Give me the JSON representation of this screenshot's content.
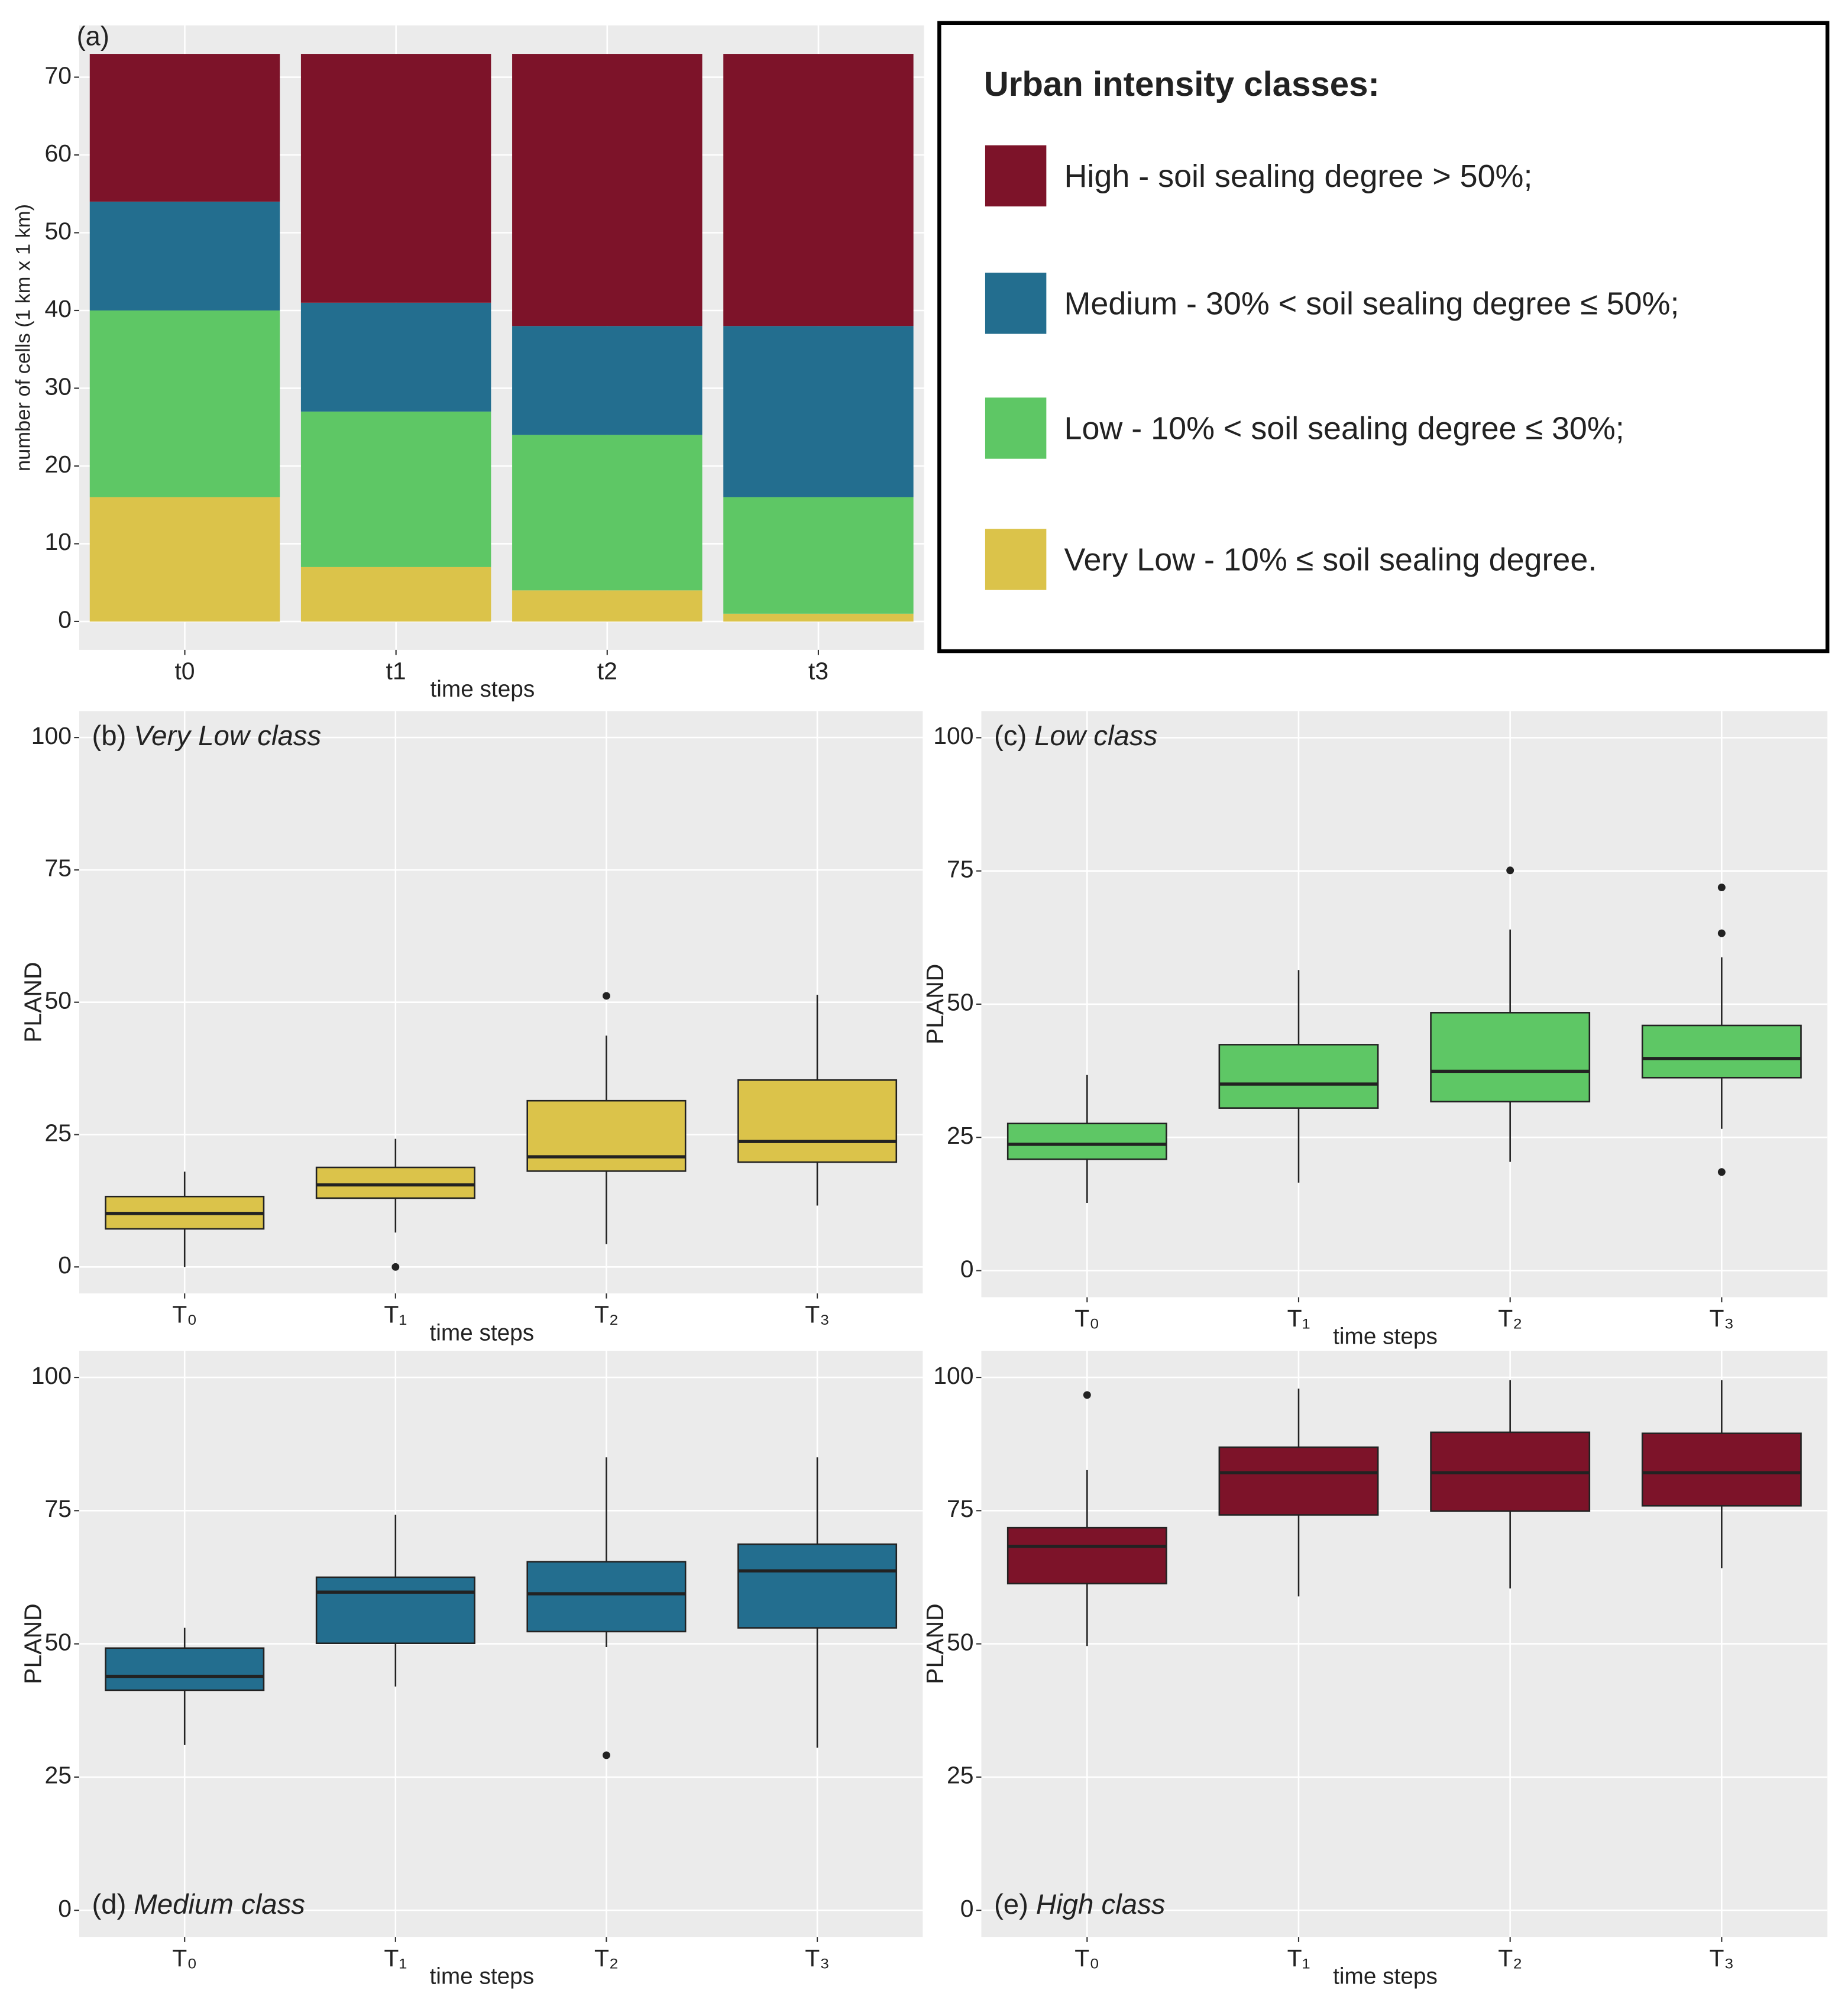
{
  "chart_data": [
    {
      "type": "bar",
      "label": "(a)",
      "x_label": "time steps",
      "y_label": "number of cells (1 km x 1 km)",
      "categories": [
        "t0",
        "t1",
        "t2",
        "t3"
      ],
      "series": [
        {
          "name": "High - soil sealing degree > 50%;",
          "color": "#7d1329",
          "values": [
            19,
            32,
            35,
            35
          ]
        },
        {
          "name": "Medium - 30% < soil sealing degree ≤ 50%;",
          "color": "#236e8f",
          "values": [
            14,
            14,
            14,
            22
          ]
        },
        {
          "name": "Low - 10% < soil sealing degree ≤ 30%;",
          "color": "#5ec765",
          "values": [
            24,
            20,
            20,
            15
          ]
        },
        {
          "name": "Very Low - 10% ≤ soil sealing degree.",
          "color": "#dbc34a",
          "values": [
            16,
            7,
            4,
            1
          ]
        }
      ],
      "stacked": true,
      "legend_title": "Urban intensity classes:",
      "legend": "right",
      "ylim": [
        -3.65,
        76.65
      ],
      "yticks": [
        0,
        10,
        20,
        30,
        40,
        50,
        60,
        70
      ],
      "grid": true
    },
    {
      "type": "box",
      "label": "(b)",
      "title": "Very Low class",
      "title_position": "top",
      "color": "#dbc34a",
      "x_label": "time steps",
      "y_label": "PLAND",
      "categories": [
        "T₀",
        "T₁",
        "T₂",
        "T₃"
      ],
      "min": [
        0,
        6.5,
        4.3,
        11.6
      ],
      "q1": [
        7.2,
        13,
        18.1,
        19.8
      ],
      "median": [
        10.1,
        15.5,
        20.8,
        23.7
      ],
      "q3": [
        13.3,
        18.8,
        31.4,
        35.3
      ],
      "max": [
        18,
        24.2,
        43.7,
        51.4
      ],
      "outliers": [
        [],
        [
          0
        ],
        [
          51.2
        ],
        []
      ],
      "ylim": [
        -5,
        105
      ],
      "yticks": [
        0,
        25,
        50,
        75,
        100
      ],
      "grid": true
    },
    {
      "type": "box",
      "label": "(c)",
      "title": "Low class",
      "title_position": "top",
      "color": "#5ec765",
      "x_label": "time steps",
      "y_label": "PLAND",
      "categories": [
        "T₀",
        "T₁",
        "T₂",
        "T₃"
      ],
      "min": [
        12.7,
        16.5,
        20.4,
        26.6
      ],
      "q1": [
        20.9,
        30.5,
        31.7,
        36.2
      ],
      "median": [
        23.7,
        35,
        37.4,
        39.8
      ],
      "q3": [
        27.6,
        42.4,
        48.4,
        46
      ],
      "max": [
        36.7,
        56.4,
        64,
        58.8
      ],
      "outliers": [
        [],
        [],
        [
          75.1
        ],
        [
          71.9,
          63.3,
          18.5
        ]
      ],
      "ylim": [
        -5,
        105
      ],
      "yticks": [
        0,
        25,
        50,
        75,
        100
      ],
      "grid": true
    },
    {
      "type": "box",
      "label": "(d)",
      "title": "Medium class",
      "title_position": "bottom",
      "color": "#236e8f",
      "x_label": "time steps",
      "y_label": "PLAND",
      "categories": [
        "T₀",
        "T₁",
        "T₂",
        "T₃"
      ],
      "min": [
        31,
        42,
        49.4,
        30.5
      ],
      "q1": [
        41.3,
        50.1,
        52.3,
        53
      ],
      "median": [
        43.9,
        59.7,
        59.4,
        63.7
      ],
      "q3": [
        49.2,
        62.5,
        65.4,
        68.7
      ],
      "max": [
        53,
        74.2,
        85,
        85
      ],
      "outliers": [
        [],
        [],
        [
          29.1
        ],
        []
      ],
      "ylim": [
        -5,
        105
      ],
      "yticks": [
        0,
        25,
        50,
        75,
        100
      ],
      "grid": true
    },
    {
      "type": "box",
      "label": "(e)",
      "title": "High class",
      "title_position": "bottom",
      "color": "#7d1329",
      "x_label": "time steps",
      "y_label": "PLAND",
      "categories": [
        "T₀",
        "T₁",
        "T₂",
        "T₃"
      ],
      "min": [
        49.6,
        58.9,
        60.4,
        64.2
      ],
      "q1": [
        61.3,
        74.2,
        74.9,
        75.9
      ],
      "median": [
        68.3,
        82.1,
        82.1,
        82.1
      ],
      "q3": [
        71.8,
        86.9,
        89.7,
        89.5
      ],
      "max": [
        82.6,
        97.9,
        99.5,
        99.5
      ],
      "outliers": [
        [
          96.7
        ],
        [],
        [],
        []
      ],
      "ylim": [
        -5,
        105
      ],
      "yticks": [
        0,
        25,
        50,
        75,
        100
      ],
      "grid": true
    }
  ]
}
